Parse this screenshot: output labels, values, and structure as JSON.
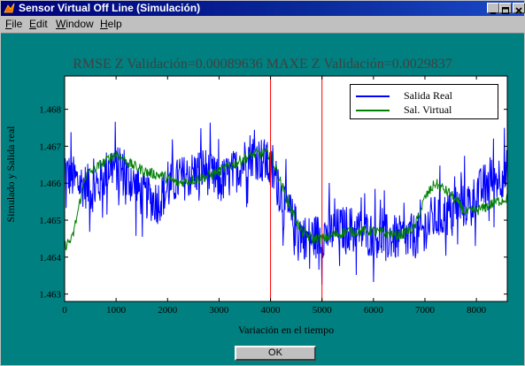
{
  "window": {
    "title": "Sensor Virtual Off Line (Simulación)",
    "colors": {
      "frame": "#008080",
      "titlebar": "#00007b",
      "chrome": "#c0c0c0"
    }
  },
  "icons": {
    "app": "matlab-figure-icon",
    "minimize": "minimize-icon",
    "maximize": "maximize-icon",
    "close": "close-icon"
  },
  "menu": {
    "items": [
      {
        "label": "File",
        "accel": "F"
      },
      {
        "label": "Edit",
        "accel": "E"
      },
      {
        "label": "Window",
        "accel": "W"
      },
      {
        "label": "Help",
        "accel": "H"
      }
    ]
  },
  "chart_data": {
    "type": "line",
    "title": "RMSE Z Validación=0.00089636   MAXE Z Validación=0.0029837",
    "xlabel": "Variación en el tiempo",
    "ylabel": "Simulado y Salida real",
    "xlim": [
      0,
      8600
    ],
    "ylim": [
      1.4628,
      1.4689
    ],
    "xticks": [
      "0",
      "1000",
      "2000",
      "3000",
      "4000",
      "5000",
      "6000",
      "7000",
      "8000"
    ],
    "xtick_values": [
      0,
      1000,
      2000,
      3000,
      4000,
      5000,
      6000,
      7000,
      8000
    ],
    "yticks": [
      "1.463",
      "1.464",
      "1.465",
      "1.466",
      "1.467",
      "1.468"
    ],
    "ytick_values": [
      1.463,
      1.464,
      1.465,
      1.466,
      1.467,
      1.468
    ],
    "grid": false,
    "legend_position": "top-right",
    "vertical_markers": [
      4000,
      5000
    ],
    "marker_color": "#ff0000",
    "series": [
      {
        "name": "Salida Real",
        "color": "#0000ff",
        "noise": 0.0009,
        "x": [
          0,
          300,
          600,
          900,
          1200,
          1500,
          1800,
          2100,
          2400,
          2700,
          3000,
          3300,
          3600,
          3900,
          4100,
          4300,
          4500,
          4700,
          5000,
          5500,
          6000,
          6500,
          6900,
          7100,
          7500,
          7900,
          8200,
          8600
        ],
        "y": [
          1.4663,
          1.466,
          1.4658,
          1.4665,
          1.4662,
          1.4657,
          1.4655,
          1.466,
          1.4662,
          1.4664,
          1.466,
          1.4663,
          1.4668,
          1.4666,
          1.4661,
          1.4653,
          1.4648,
          1.4645,
          1.4646,
          1.4648,
          1.4646,
          1.4645,
          1.4646,
          1.465,
          1.4652,
          1.4655,
          1.466,
          1.4663
        ]
      },
      {
        "name": "Sal. Virtual",
        "color": "#008000",
        "noise": 0.00015,
        "x": [
          0,
          150,
          400,
          700,
          1000,
          1300,
          1600,
          1900,
          2200,
          2500,
          2800,
          3100,
          3400,
          3700,
          4000,
          4200,
          4400,
          4600,
          4800,
          5000,
          5500,
          6000,
          6500,
          6800,
          7000,
          7200,
          7500,
          7800,
          8100,
          8400,
          8600
        ],
        "y": [
          1.4643,
          1.4645,
          1.4662,
          1.4665,
          1.4668,
          1.4665,
          1.4663,
          1.4662,
          1.466,
          1.4661,
          1.4662,
          1.4664,
          1.4666,
          1.4668,
          1.4668,
          1.466,
          1.4653,
          1.4647,
          1.4645,
          1.4645,
          1.4647,
          1.4647,
          1.4646,
          1.4648,
          1.4656,
          1.466,
          1.4657,
          1.4652,
          1.4653,
          1.4655,
          1.4656
        ]
      }
    ]
  },
  "ok_button": {
    "label": "OK"
  }
}
